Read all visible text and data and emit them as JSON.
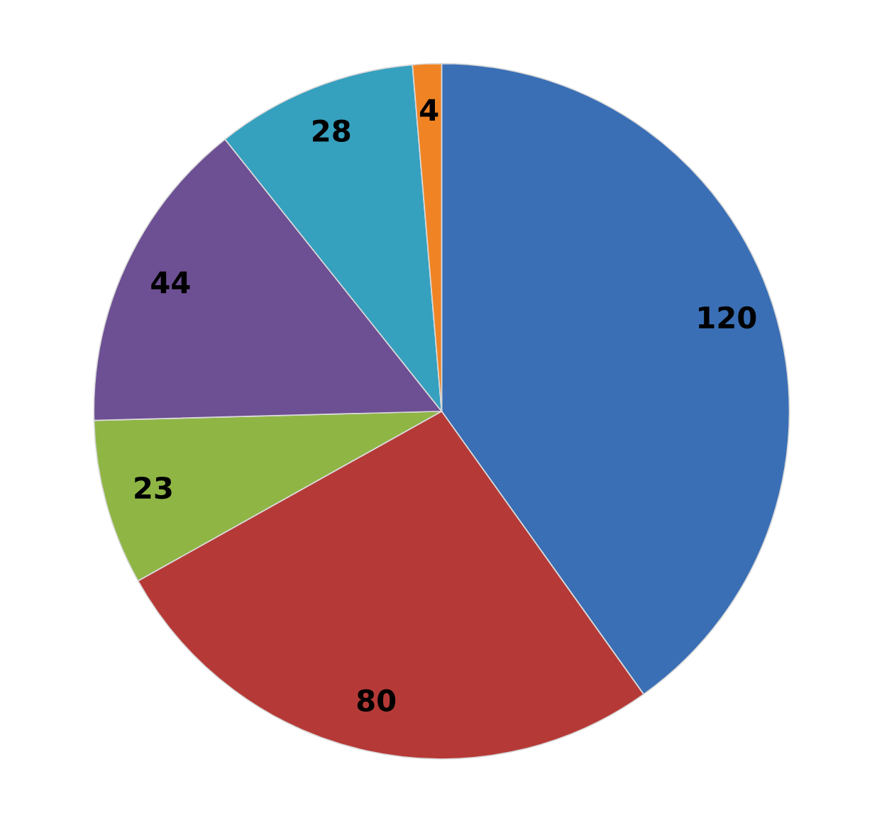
{
  "chart_data": {
    "type": "pie",
    "categories": [
      null,
      null,
      null,
      null,
      null,
      null
    ],
    "values": [
      120,
      80,
      23,
      44,
      28,
      4
    ],
    "colors": [
      "#3a6fb5",
      "#b53a37",
      "#8fb545",
      "#6d4f93",
      "#36a0bf",
      "#f08424"
    ],
    "data_labels": true
  }
}
